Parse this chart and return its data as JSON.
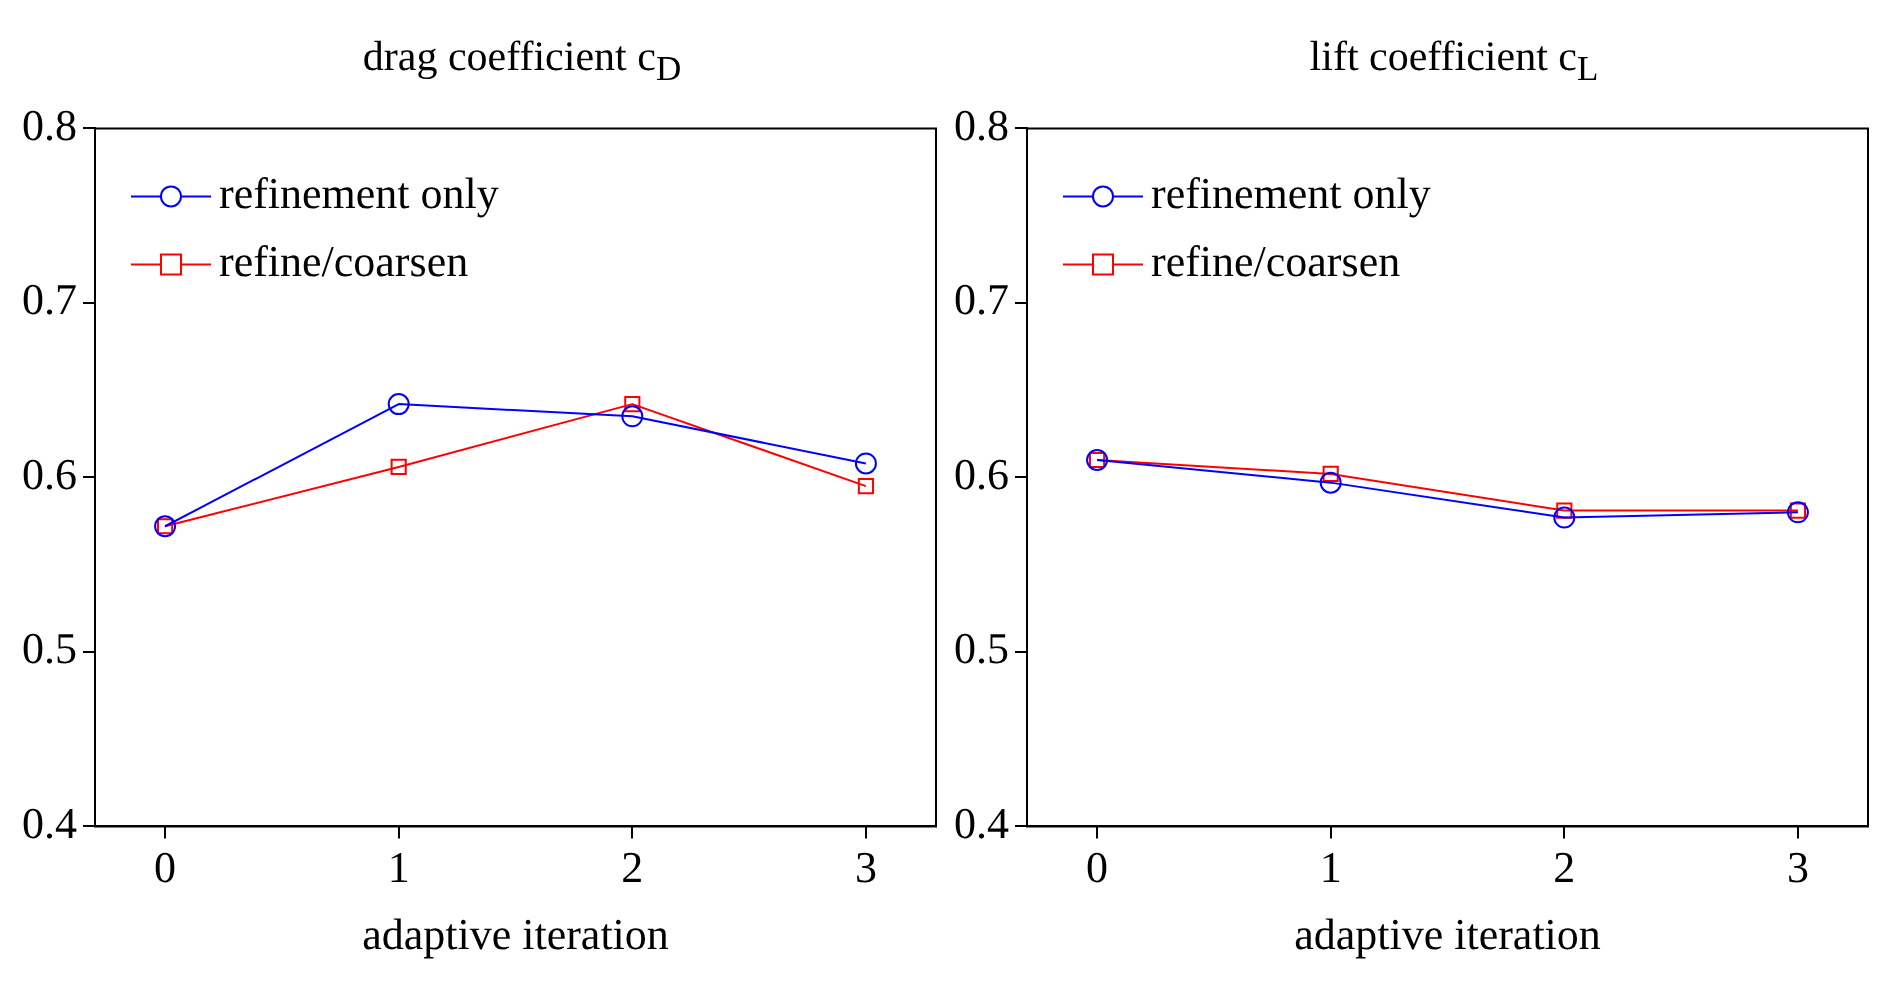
{
  "chart_data": [
    {
      "type": "line",
      "title": "drag coefficient c$_{D}$",
      "xlabel": "adaptive iteration",
      "x": [
        0,
        1,
        2,
        3
      ],
      "xlim": [
        -0.3,
        3.3
      ],
      "xticks": [
        0,
        1,
        2,
        3
      ],
      "ylim": [
        0.4,
        0.8
      ],
      "yticks": [
        0.4,
        0.5,
        0.6,
        0.7,
        0.8
      ],
      "grid": false,
      "legend": "top left",
      "series": [
        {
          "name": "refinement only",
          "color": "#0000ff",
          "marker": "circle",
          "values": [
            0.572,
            0.642,
            0.635,
            0.608
          ]
        },
        {
          "name": "refine/coarsen",
          "color": "#ff0000",
          "marker": "square",
          "values": [
            0.572,
            0.606,
            0.642,
            0.595
          ]
        }
      ]
    },
    {
      "type": "line",
      "title": "lift coefficient c$_{L}$",
      "xlabel": "adaptive iteration",
      "x": [
        0,
        1,
        2,
        3
      ],
      "xlim": [
        -0.3,
        3.3
      ],
      "xticks": [
        0,
        1,
        2,
        3
      ],
      "ylim": [
        0.4,
        0.8
      ],
      "yticks": [
        0.4,
        0.5,
        0.6,
        0.7,
        0.8
      ],
      "grid": false,
      "legend": "top left",
      "series": [
        {
          "name": "refinement only",
          "color": "#0000ff",
          "marker": "circle",
          "values": [
            0.61,
            0.597,
            0.577,
            0.58
          ]
        },
        {
          "name": "refine/coarsen",
          "color": "#ff0000",
          "marker": "square",
          "values": [
            0.61,
            0.602,
            0.581,
            0.581
          ]
        }
      ]
    }
  ]
}
